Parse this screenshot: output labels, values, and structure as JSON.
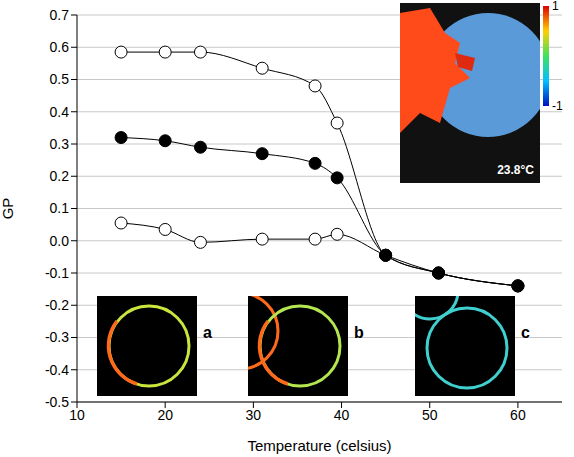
{
  "chart_data": {
    "type": "line",
    "x_label": "Temperature (celsius)",
    "y_label": "GP",
    "x": [
      15,
      20,
      24,
      31,
      37,
      39.5,
      45,
      51,
      60
    ],
    "series": [
      {
        "color": "#000000",
        "marker": "open_circle",
        "values": [
          0.585,
          0.585,
          0.585,
          0.535,
          0.48,
          0.365,
          -0.045,
          -0.1,
          -0.14
        ]
      },
      {
        "color": "#000000",
        "marker": "circle",
        "values": [
          0.32,
          0.31,
          0.29,
          0.27,
          0.24,
          0.195,
          -0.045,
          -0.1,
          -0.14
        ]
      },
      {
        "color": "#000000",
        "marker": "open_circle",
        "values": [
          0.055,
          0.035,
          -0.005,
          0.005,
          0.005,
          0.02,
          -0.045,
          -0.1,
          -0.14
        ]
      }
    ],
    "xlim": [
      10,
      65
    ],
    "xticks": [
      10,
      20,
      30,
      40,
      50,
      60
    ],
    "ylim": [
      -0.5,
      0.7
    ],
    "yticks": [
      -0.5,
      -0.4,
      -0.3,
      -0.2,
      -0.1,
      {
        "value": 0,
        "label": "0.0"
      },
      0.1,
      0.2,
      0.3,
      0.4,
      0.5,
      0.6,
      0.7
    ],
    "grid": "y",
    "inset_labels": [
      "a",
      "b",
      "c"
    ],
    "inset_temperature": "23.8°C",
    "colorbar_range": [
      -1,
      1
    ],
    "colorbar_ticks": [
      1,
      -1
    ]
  }
}
